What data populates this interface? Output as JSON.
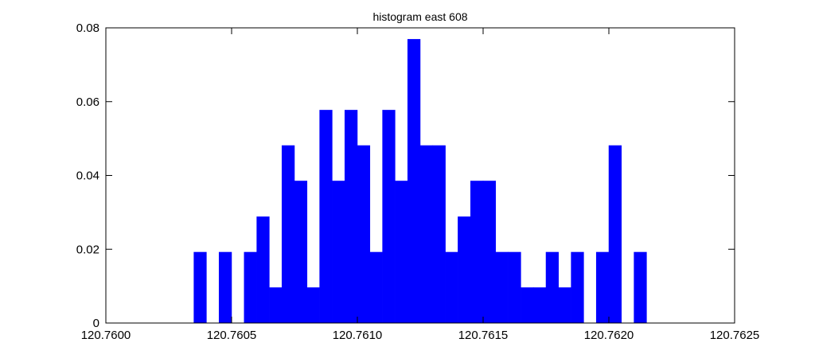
{
  "chart_data": {
    "type": "bar",
    "title": "histogram east 608",
    "xlabel": "",
    "ylabel": "",
    "xlim": [
      120.76,
      120.7625
    ],
    "ylim": [
      0,
      0.08
    ],
    "xticks": [
      "120.7600",
      "120.7605",
      "120.7610",
      "120.7615",
      "120.7620",
      "120.7625"
    ],
    "yticks": [
      "0",
      "0.02",
      "0.04",
      "0.06",
      "0.08"
    ],
    "bar_color": "#0000ff",
    "bin_width": 5e-05,
    "grid": false,
    "bins": [
      {
        "x": 120.760375,
        "value": 0.0192
      },
      {
        "x": 120.760425,
        "value": 0
      },
      {
        "x": 120.760475,
        "value": 0.0192
      },
      {
        "x": 120.760525,
        "value": 0
      },
      {
        "x": 120.760575,
        "value": 0.0192
      },
      {
        "x": 120.760625,
        "value": 0.0288
      },
      {
        "x": 120.760675,
        "value": 0.0096
      },
      {
        "x": 120.760725,
        "value": 0.0481
      },
      {
        "x": 120.760775,
        "value": 0.0385
      },
      {
        "x": 120.760825,
        "value": 0.0096
      },
      {
        "x": 120.760875,
        "value": 0.0577
      },
      {
        "x": 120.760925,
        "value": 0.0385
      },
      {
        "x": 120.760975,
        "value": 0.0577
      },
      {
        "x": 120.761025,
        "value": 0.0481
      },
      {
        "x": 120.761075,
        "value": 0.0192
      },
      {
        "x": 120.761125,
        "value": 0.0577
      },
      {
        "x": 120.761175,
        "value": 0.0385
      },
      {
        "x": 120.761225,
        "value": 0.0769
      },
      {
        "x": 120.761275,
        "value": 0.0481
      },
      {
        "x": 120.761325,
        "value": 0.0481
      },
      {
        "x": 120.761375,
        "value": 0.0192
      },
      {
        "x": 120.761425,
        "value": 0.0288
      },
      {
        "x": 120.761475,
        "value": 0.0385
      },
      {
        "x": 120.761525,
        "value": 0.0385
      },
      {
        "x": 120.761575,
        "value": 0.0192
      },
      {
        "x": 120.761625,
        "value": 0.0192
      },
      {
        "x": 120.761675,
        "value": 0.0096
      },
      {
        "x": 120.761725,
        "value": 0.0096
      },
      {
        "x": 120.761775,
        "value": 0.0192
      },
      {
        "x": 120.761825,
        "value": 0.0096
      },
      {
        "x": 120.761875,
        "value": 0.0192
      },
      {
        "x": 120.761925,
        "value": 0
      },
      {
        "x": 120.761975,
        "value": 0.0192
      },
      {
        "x": 120.762025,
        "value": 0.0481
      },
      {
        "x": 120.762075,
        "value": 0
      },
      {
        "x": 120.762125,
        "value": 0.0192
      }
    ]
  }
}
